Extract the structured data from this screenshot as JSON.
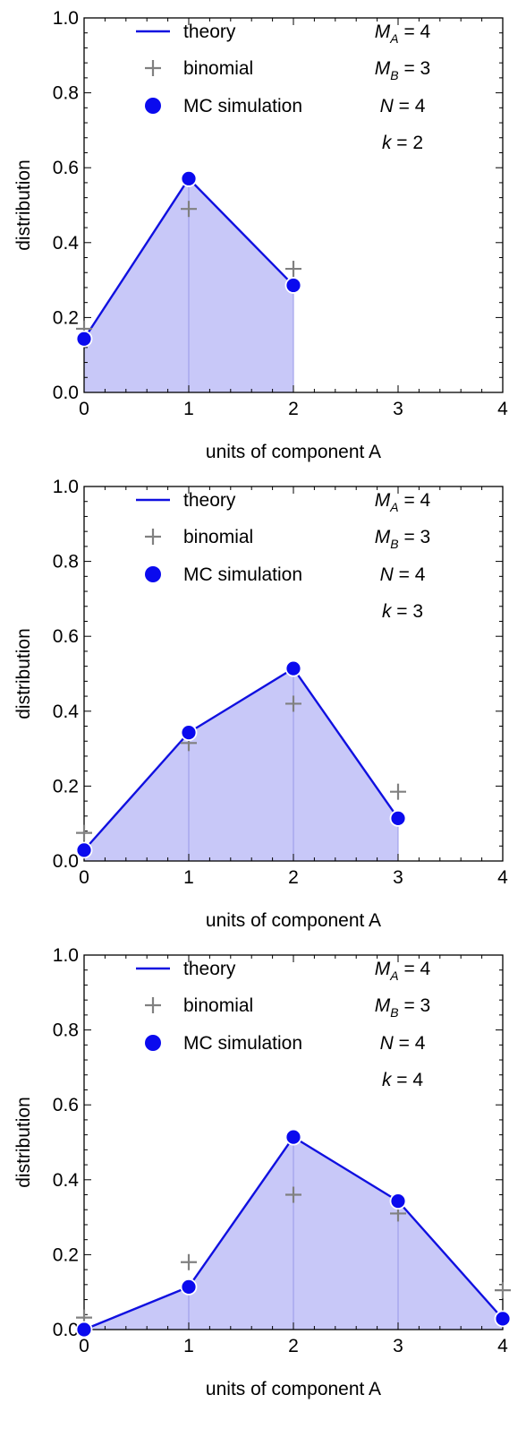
{
  "chart_data": [
    {
      "type": "line",
      "xlabel": "units of component A",
      "ylabel": "distribution",
      "xlim": [
        0,
        4
      ],
      "ylim": [
        0,
        1.0
      ],
      "x_ticks": [
        "0",
        "1",
        "2",
        "3",
        "4"
      ],
      "y_ticks": [
        "0.0",
        "0.2",
        "0.4",
        "0.6",
        "0.8",
        "1.0"
      ],
      "legend": [
        "theory",
        "binomial",
        "MC simulation"
      ],
      "params": [
        {
          "name": "M",
          "sub": "A",
          "value": "4"
        },
        {
          "name": "M",
          "sub": "B",
          "value": "3"
        },
        {
          "name": "N",
          "sub": "",
          "value": "4"
        },
        {
          "name": "k",
          "sub": "",
          "value": "2"
        }
      ],
      "x": [
        0,
        1,
        2
      ],
      "series": [
        {
          "name": "theory",
          "values": [
            0.143,
            0.571,
            0.286
          ]
        },
        {
          "name": "binomial",
          "values": [
            0.17,
            0.49,
            0.33
          ]
        },
        {
          "name": "MC simulation",
          "values": [
            0.143,
            0.571,
            0.286
          ]
        }
      ]
    },
    {
      "type": "line",
      "xlabel": "units of component A",
      "ylabel": "distribution",
      "xlim": [
        0,
        4
      ],
      "ylim": [
        0,
        1.0
      ],
      "x_ticks": [
        "0",
        "1",
        "2",
        "3",
        "4"
      ],
      "y_ticks": [
        "0.0",
        "0.2",
        "0.4",
        "0.6",
        "0.8",
        "1.0"
      ],
      "legend": [
        "theory",
        "binomial",
        "MC simulation"
      ],
      "params": [
        {
          "name": "M",
          "sub": "A",
          "value": "4"
        },
        {
          "name": "M",
          "sub": "B",
          "value": "3"
        },
        {
          "name": "N",
          "sub": "",
          "value": "4"
        },
        {
          "name": "k",
          "sub": "",
          "value": "3"
        }
      ],
      "x": [
        0,
        1,
        2,
        3
      ],
      "series": [
        {
          "name": "theory",
          "values": [
            0.029,
            0.343,
            0.514,
            0.114
          ]
        },
        {
          "name": "binomial",
          "values": [
            0.075,
            0.315,
            0.42,
            0.185
          ]
        },
        {
          "name": "MC simulation",
          "values": [
            0.029,
            0.343,
            0.514,
            0.114
          ]
        }
      ]
    },
    {
      "type": "line",
      "xlabel": "units of component A",
      "ylabel": "distribution",
      "xlim": [
        0,
        4
      ],
      "ylim": [
        0,
        1.0
      ],
      "x_ticks": [
        "0",
        "1",
        "2",
        "3",
        "4"
      ],
      "y_ticks": [
        "0.0",
        "0.2",
        "0.4",
        "0.6",
        "0.8",
        "1.0"
      ],
      "legend": [
        "theory",
        "binomial",
        "MC simulation"
      ],
      "params": [
        {
          "name": "M",
          "sub": "A",
          "value": "4"
        },
        {
          "name": "M",
          "sub": "B",
          "value": "3"
        },
        {
          "name": "N",
          "sub": "",
          "value": "4"
        },
        {
          "name": "k",
          "sub": "",
          "value": "4"
        }
      ],
      "x": [
        0,
        1,
        2,
        3,
        4
      ],
      "series": [
        {
          "name": "theory",
          "values": [
            0.0,
            0.114,
            0.514,
            0.343,
            0.029
          ]
        },
        {
          "name": "binomial",
          "values": [
            0.032,
            0.18,
            0.36,
            0.31,
            0.105
          ]
        },
        {
          "name": "MC simulation",
          "values": [
            0.0,
            0.114,
            0.514,
            0.343,
            0.029
          ]
        }
      ]
    }
  ],
  "colors": {
    "theory": "#1010e0",
    "fill": "#c8c8f8",
    "binomial": "#808080",
    "mc": "#0a0aee",
    "drop_line": "#9898e8"
  }
}
